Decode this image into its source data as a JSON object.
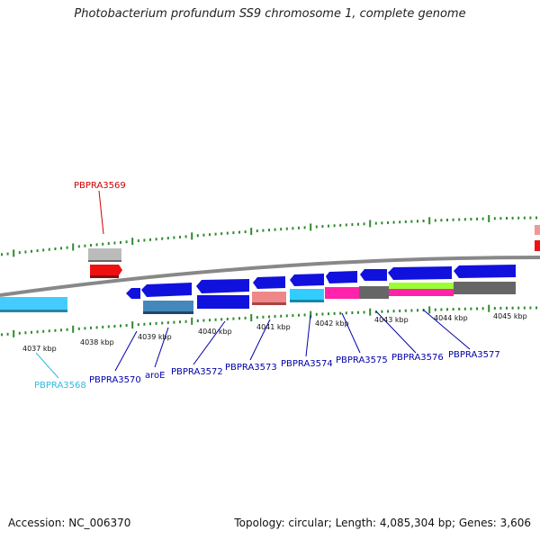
{
  "title": "Photobacterium profundum SS9 chromosome 1, complete genome",
  "footer": {
    "accession": "Accession: NC_006370",
    "summary": "Topology: circular; Length: 4,085,304 bp; Genes: 3,606"
  },
  "colors": {
    "backbone": "#888888",
    "tick": "#2e8b2e",
    "label_blue": "#0000aa",
    "label_red": "#cc0000",
    "label_cyan": "#33bbdd"
  },
  "ticks": [
    "4037 kbp",
    "4038 kbp",
    "4039 kbp",
    "4040 kbp",
    "4041 kbp",
    "4042 kbp",
    "4043 kbp",
    "4044 kbp",
    "4045 kbp"
  ],
  "gene_labels": [
    {
      "text": "PBPRA3569",
      "color": "label_red"
    },
    {
      "text": "PBPRA3568",
      "color": "label_cyan"
    },
    {
      "text": "PBPRA3570",
      "color": "label_blue"
    },
    {
      "text": "aroE",
      "color": "label_blue"
    },
    {
      "text": "PBPRA3572",
      "color": "label_blue"
    },
    {
      "text": "PBPRA3573",
      "color": "label_blue"
    },
    {
      "text": "PBPRA3574",
      "color": "label_blue"
    },
    {
      "text": "PBPRA3575",
      "color": "label_blue"
    },
    {
      "text": "PBPRA3576",
      "color": "label_blue"
    },
    {
      "text": "PBPRA3577",
      "color": "label_blue"
    }
  ]
}
